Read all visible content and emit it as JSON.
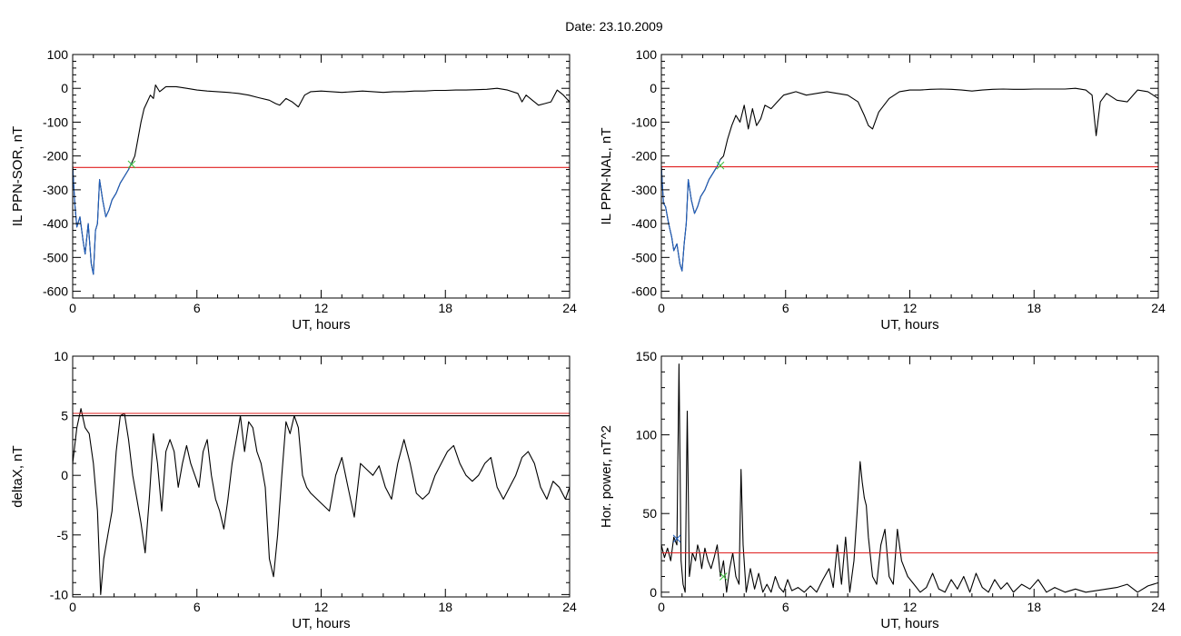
{
  "figure": {
    "title": "Date:  23.10.2009"
  },
  "colors": {
    "trace": "#000000",
    "highlight": "#1f5fbf",
    "threshold": "#e02020",
    "marker_green": "#3cbf3c",
    "marker_blue": "#1f5fbf",
    "frame": "#000000"
  },
  "chart_data": [
    {
      "type": "line",
      "id": "ppn-sor",
      "xlabel": "UT, hours",
      "ylabel": "IL PPN-SOR, nT",
      "xlim": [
        0,
        24
      ],
      "ylim": [
        -620,
        100
      ],
      "xticks": [
        0,
        6,
        12,
        18,
        24
      ],
      "yticks": [
        100,
        0,
        -100,
        -200,
        -300,
        -400,
        -500,
        -600
      ],
      "series": [
        {
          "color": "black",
          "x": [
            0,
            0.1,
            0.2,
            0.35,
            0.5,
            0.6,
            0.75,
            0.9,
            1.0,
            1.1,
            1.2,
            1.3,
            1.45,
            1.6,
            1.75,
            1.9,
            2.1,
            2.3,
            2.5,
            2.7,
            2.85,
            3.0,
            3.15,
            3.3,
            3.45,
            3.6,
            3.75,
            3.9,
            4.0,
            4.2,
            4.5,
            5.0,
            5.5,
            6.0,
            6.5,
            7.0,
            7.5,
            8.0,
            8.5,
            9.0,
            9.5,
            9.8,
            10.0,
            10.3,
            10.6,
            10.9,
            11.2,
            11.5,
            12.0,
            12.5,
            13.0,
            13.5,
            14.0,
            14.5,
            15.0,
            15.5,
            16.0,
            16.5,
            17.0,
            17.5,
            18.0,
            18.5,
            19.0,
            19.5,
            20.0,
            20.5,
            21.0,
            21.5,
            21.7,
            21.9,
            22.2,
            22.5,
            22.8,
            23.1,
            23.4,
            23.7,
            24.0
          ],
          "y": [
            -230,
            -340,
            -410,
            -380,
            -450,
            -490,
            -400,
            -520,
            -550,
            -420,
            -400,
            -270,
            -330,
            -380,
            -360,
            -330,
            -310,
            -280,
            -260,
            -240,
            -220,
            -200,
            -150,
            -100,
            -60,
            -40,
            -20,
            -30,
            10,
            -10,
            5,
            5,
            0,
            -5,
            -8,
            -10,
            -12,
            -15,
            -20,
            -28,
            -35,
            -45,
            -50,
            -30,
            -40,
            -55,
            -20,
            -10,
            -8,
            -10,
            -12,
            -10,
            -8,
            -10,
            -12,
            -10,
            -10,
            -8,
            -8,
            -6,
            -6,
            -5,
            -5,
            -4,
            -3,
            0,
            -5,
            -15,
            -40,
            -20,
            -35,
            -50,
            -45,
            -40,
            -5,
            -20,
            -40
          ]
        },
        {
          "color": "blue",
          "x": [
            0,
            0.1,
            0.2,
            0.35,
            0.5,
            0.6,
            0.75,
            0.9,
            1.0,
            1.1,
            1.2,
            1.3,
            1.45,
            1.6,
            1.75,
            1.9,
            2.1,
            2.3,
            2.5,
            2.7,
            2.85
          ],
          "y": [
            -230,
            -340,
            -410,
            -380,
            -450,
            -490,
            -400,
            -520,
            -550,
            -420,
            -400,
            -270,
            -330,
            -380,
            -360,
            -330,
            -310,
            -280,
            -260,
            -240,
            -220
          ]
        },
        {
          "color": "red",
          "x": [
            0,
            24
          ],
          "y": [
            -234,
            -234
          ]
        }
      ],
      "markers": [
        {
          "x": 2.85,
          "y": -225,
          "symbol": "x",
          "color": "green"
        }
      ]
    },
    {
      "type": "line",
      "id": "ppn-nal",
      "xlabel": "UT, hours",
      "ylabel": "IL PPN-NAL, nT",
      "xlim": [
        0,
        24
      ],
      "ylim": [
        -620,
        100
      ],
      "xticks": [
        0,
        6,
        12,
        18,
        24
      ],
      "yticks": [
        100,
        0,
        -100,
        -200,
        -300,
        -400,
        -500,
        -600
      ],
      "series": [
        {
          "color": "black",
          "x": [
            0,
            0.1,
            0.2,
            0.35,
            0.5,
            0.6,
            0.75,
            0.9,
            1.0,
            1.1,
            1.2,
            1.3,
            1.45,
            1.6,
            1.75,
            1.9,
            2.1,
            2.3,
            2.5,
            2.7,
            2.85,
            3.0,
            3.2,
            3.4,
            3.6,
            3.8,
            4.0,
            4.2,
            4.4,
            4.6,
            4.8,
            5.0,
            5.3,
            5.6,
            5.9,
            6.2,
            6.5,
            7.0,
            7.5,
            8.0,
            8.5,
            9.0,
            9.5,
            9.8,
            10.0,
            10.2,
            10.5,
            11.0,
            11.5,
            12.0,
            12.5,
            13.0,
            13.5,
            14.0,
            14.5,
            15.0,
            15.5,
            16.0,
            16.5,
            17.0,
            17.5,
            18.0,
            18.5,
            19.0,
            19.5,
            20.0,
            20.5,
            20.8,
            21.0,
            21.2,
            21.5,
            22.0,
            22.5,
            23.0,
            23.5,
            24.0
          ],
          "y": [
            -230,
            -340,
            -350,
            -400,
            -440,
            -480,
            -460,
            -520,
            -540,
            -460,
            -400,
            -270,
            -330,
            -370,
            -350,
            -320,
            -300,
            -270,
            -250,
            -230,
            -210,
            -200,
            -150,
            -110,
            -80,
            -100,
            -50,
            -120,
            -60,
            -110,
            -90,
            -50,
            -60,
            -40,
            -20,
            -15,
            -10,
            -20,
            -15,
            -10,
            -15,
            -20,
            -40,
            -80,
            -110,
            -120,
            -70,
            -30,
            -10,
            -5,
            -5,
            -3,
            -2,
            -3,
            -5,
            -8,
            -5,
            -3,
            -2,
            -3,
            -3,
            -2,
            -2,
            -2,
            -2,
            0,
            -5,
            -20,
            -140,
            -40,
            -15,
            -35,
            -40,
            -5,
            -10,
            -30
          ]
        },
        {
          "color": "blue",
          "x": [
            0,
            0.1,
            0.2,
            0.35,
            0.5,
            0.6,
            0.75,
            0.9,
            1.0,
            1.1,
            1.2,
            1.3,
            1.45,
            1.6,
            1.75,
            1.9,
            2.1,
            2.3,
            2.5,
            2.7,
            2.85
          ],
          "y": [
            -230,
            -340,
            -350,
            -400,
            -440,
            -480,
            -460,
            -520,
            -540,
            -460,
            -400,
            -270,
            -330,
            -370,
            -350,
            -320,
            -300,
            -270,
            -250,
            -230,
            -210
          ]
        },
        {
          "color": "red",
          "x": [
            0,
            24
          ],
          "y": [
            -232,
            -232
          ]
        }
      ],
      "markers": [
        {
          "x": 2.85,
          "y": -228,
          "symbol": "x",
          "color": "green"
        }
      ]
    },
    {
      "type": "line",
      "id": "deltax",
      "xlabel": "UT, hours",
      "ylabel": "deltaX, nT",
      "xlim": [
        0,
        24
      ],
      "ylim": [
        -10.2,
        10
      ],
      "xticks": [
        0,
        6,
        12,
        18,
        24
      ],
      "yticks": [
        10,
        5,
        0,
        -5,
        -10
      ],
      "series": [
        {
          "color": "black",
          "x": [
            0,
            0.2,
            0.4,
            0.6,
            0.8,
            1.0,
            1.2,
            1.35,
            1.5,
            1.7,
            1.9,
            2.1,
            2.3,
            2.5,
            2.7,
            2.9,
            3.1,
            3.3,
            3.5,
            3.7,
            3.9,
            4.1,
            4.3,
            4.5,
            4.7,
            4.9,
            5.1,
            5.3,
            5.5,
            5.7,
            5.9,
            6.1,
            6.3,
            6.5,
            6.7,
            6.9,
            7.1,
            7.3,
            7.5,
            7.7,
            7.9,
            8.1,
            8.3,
            8.5,
            8.7,
            8.9,
            9.1,
            9.3,
            9.5,
            9.7,
            9.9,
            10.1,
            10.3,
            10.5,
            10.7,
            10.9,
            11.1,
            11.3,
            11.5,
            11.8,
            12.1,
            12.4,
            12.7,
            13.0,
            13.3,
            13.6,
            13.9,
            14.2,
            14.5,
            14.8,
            15.1,
            15.4,
            15.7,
            16.0,
            16.3,
            16.6,
            16.9,
            17.2,
            17.5,
            17.8,
            18.1,
            18.4,
            18.7,
            19.0,
            19.3,
            19.6,
            19.9,
            20.2,
            20.5,
            20.8,
            21.1,
            21.4,
            21.7,
            22.0,
            22.3,
            22.6,
            22.9,
            23.2,
            23.5,
            23.8,
            24.0
          ],
          "y": [
            1,
            4,
            5.6,
            4,
            3.5,
            1,
            -3,
            -10,
            -7,
            -5,
            -3,
            2,
            5,
            5.2,
            3,
            0,
            -2,
            -4,
            -6.5,
            -2,
            3.5,
            1,
            -3,
            2,
            3,
            2,
            -1,
            1,
            2.5,
            1,
            0,
            -1,
            2,
            3,
            0,
            -2,
            -3,
            -4.5,
            -2,
            1,
            3,
            5,
            2,
            4.5,
            4,
            2,
            1,
            -1,
            -7,
            -8.5,
            -5,
            0,
            4.5,
            3.5,
            5,
            4,
            0,
            -1,
            -1.5,
            -2,
            -2.5,
            -3,
            0,
            1.5,
            -1,
            -3.5,
            1,
            0.5,
            0,
            0.8,
            -1,
            -2,
            1,
            3,
            1,
            -1.5,
            -2,
            -1.5,
            0,
            1,
            2,
            2.5,
            1,
            0,
            -0.5,
            0,
            1,
            1.5,
            -1,
            -2,
            -1,
            0,
            1.5,
            2,
            1,
            -1,
            -2,
            -0.5,
            -1,
            -2,
            -1
          ]
        },
        {
          "color": "red",
          "x": [
            0,
            24
          ],
          "y": [
            5.2,
            5.2
          ]
        },
        {
          "color": "black",
          "x": [
            0,
            24
          ],
          "y": [
            5.0,
            5.0
          ]
        }
      ]
    },
    {
      "type": "line",
      "id": "hor-power",
      "xlabel": "UT, hours",
      "ylabel": "Hor. power, nT^2",
      "xlim": [
        0,
        24
      ],
      "ylim": [
        -3,
        150
      ],
      "xticks": [
        0,
        6,
        12,
        18,
        24
      ],
      "yticks": [
        0,
        50,
        100,
        150
      ],
      "series": [
        {
          "color": "black",
          "x": [
            0,
            0.15,
            0.3,
            0.45,
            0.6,
            0.75,
            0.85,
            0.95,
            1.05,
            1.15,
            1.25,
            1.35,
            1.5,
            1.65,
            1.75,
            1.85,
            1.95,
            2.1,
            2.25,
            2.4,
            2.55,
            2.7,
            2.85,
            3.0,
            3.15,
            3.3,
            3.45,
            3.6,
            3.75,
            3.85,
            3.95,
            4.1,
            4.3,
            4.5,
            4.7,
            4.9,
            5.1,
            5.3,
            5.5,
            5.7,
            5.9,
            6.1,
            6.3,
            6.6,
            6.9,
            7.2,
            7.5,
            7.8,
            8.1,
            8.3,
            8.5,
            8.7,
            8.9,
            9.1,
            9.3,
            9.5,
            9.6,
            9.7,
            9.8,
            9.9,
            10.0,
            10.2,
            10.4,
            10.6,
            10.8,
            11.0,
            11.2,
            11.4,
            11.6,
            11.9,
            12.2,
            12.5,
            12.8,
            13.1,
            13.4,
            13.7,
            14.0,
            14.3,
            14.6,
            14.9,
            15.2,
            15.5,
            15.8,
            16.1,
            16.4,
            16.7,
            17.0,
            17.4,
            17.8,
            18.2,
            18.6,
            19.0,
            19.5,
            20.0,
            20.5,
            21.0,
            21.5,
            22.0,
            22.5,
            23.0,
            23.5,
            24.0
          ],
          "y": [
            30,
            22,
            28,
            20,
            35,
            30,
            145,
            20,
            5,
            0,
            115,
            10,
            25,
            20,
            30,
            25,
            15,
            28,
            20,
            15,
            22,
            30,
            10,
            20,
            0,
            15,
            25,
            10,
            5,
            78,
            30,
            0,
            15,
            2,
            12,
            0,
            5,
            0,
            10,
            3,
            0,
            8,
            1,
            3,
            0,
            4,
            0,
            8,
            15,
            3,
            30,
            5,
            35,
            0,
            20,
            60,
            83,
            70,
            60,
            55,
            35,
            10,
            5,
            30,
            40,
            10,
            5,
            40,
            20,
            10,
            5,
            0,
            3,
            12,
            2,
            0,
            8,
            2,
            10,
            0,
            12,
            3,
            0,
            8,
            2,
            6,
            0,
            5,
            2,
            8,
            0,
            3,
            0,
            2,
            0,
            1,
            2,
            3,
            5,
            0,
            4,
            6
          ]
        },
        {
          "color": "red",
          "x": [
            0,
            24
          ],
          "y": [
            25,
            25
          ]
        }
      ],
      "markers": [
        {
          "x": 0.75,
          "y": 34,
          "symbol": "x",
          "color": "blue"
        },
        {
          "x": 3.0,
          "y": 10,
          "symbol": "x",
          "color": "green"
        }
      ]
    }
  ]
}
